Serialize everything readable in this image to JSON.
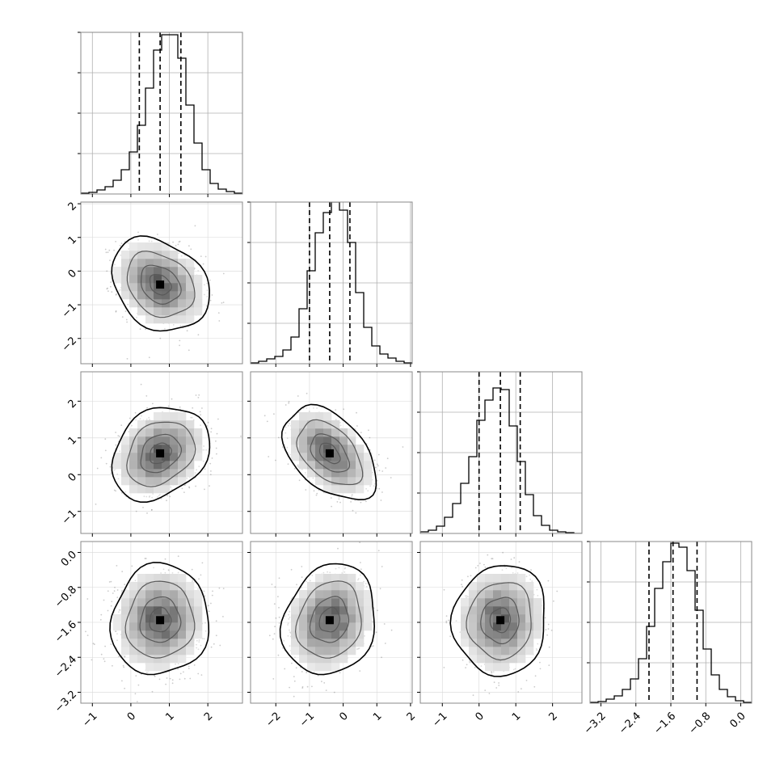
{
  "chart_data": {
    "type": "corner",
    "parameters": [
      {
        "range": [
          -1.3,
          2.9
        ],
        "ticks": [
          -1,
          0,
          1,
          2
        ],
        "tick_labels": [
          "−1",
          "0",
          "1",
          "2"
        ],
        "quantiles": [
          0.22,
          0.76,
          1.3
        ],
        "mean": 0.76,
        "sigma": 0.55,
        "hist_values": [
          1,
          2,
          5,
          9,
          17,
          30,
          52,
          85,
          131,
          178,
          197,
          197,
          168,
          110,
          63,
          30,
          13,
          6,
          3,
          1
        ]
      },
      {
        "range": [
          -2.75,
          2.05
        ],
        "ticks": [
          -2,
          -1,
          0,
          1,
          2
        ],
        "tick_labels": [
          "−2",
          "−1",
          "0",
          "1",
          "2"
        ],
        "quantiles": [
          -1.0,
          -0.4,
          0.2
        ],
        "mean": -0.4,
        "sigma": 0.6,
        "hist_values": [
          1,
          3,
          6,
          9,
          17,
          33,
          68,
          115,
          162,
          187,
          200,
          190,
          150,
          88,
          45,
          22,
          12,
          7,
          3,
          1
        ]
      },
      {
        "range": [
          -1.6,
          2.8
        ],
        "ticks": [
          -1,
          0,
          1,
          2
        ],
        "tick_labels": [
          "−1",
          "0",
          "1",
          "2"
        ],
        "quantiles": [
          0.0,
          0.58,
          1.12
        ],
        "mean": 0.58,
        "sigma": 0.55,
        "hist_values": [
          2,
          4,
          9,
          20,
          37,
          62,
          95,
          140,
          165,
          180,
          178,
          133,
          89,
          48,
          22,
          10,
          4,
          2,
          1,
          0
        ]
      },
      {
        "range": [
          -3.45,
          0.25
        ],
        "ticks": [
          -3.2,
          -2.4,
          -1.6,
          -0.8,
          0.0
        ],
        "tick_labels": [
          "−3.2",
          "−2.4",
          "−1.6",
          "−0.8",
          "0.0"
        ],
        "quantiles": [
          -2.1,
          -1.55,
          -1.0
        ],
        "mean": -1.55,
        "sigma": 0.55,
        "hist_values": [
          1,
          2,
          5,
          9,
          17,
          30,
          55,
          95,
          142,
          175,
          198,
          193,
          164,
          115,
          67,
          35,
          17,
          8,
          3,
          1
        ]
      }
    ],
    "correlations": {
      "1,0": -0.25,
      "2,0": 0.25,
      "2,1": -0.45,
      "3,0": 0.05,
      "3,1": 0.15,
      "3,2": 0.05
    },
    "histogram_ylim": [
      0,
      200
    ],
    "histogram_yticks": [
      50,
      100,
      150,
      200
    ],
    "contour_levels": [
      0.12,
      0.36,
      0.72,
      0.93
    ],
    "quantile_line_style": "dashed",
    "grid": true,
    "colors": {
      "ink": "#000000",
      "grid": "#b0b0b0",
      "frame": "#888888",
      "points": "#444444"
    }
  }
}
